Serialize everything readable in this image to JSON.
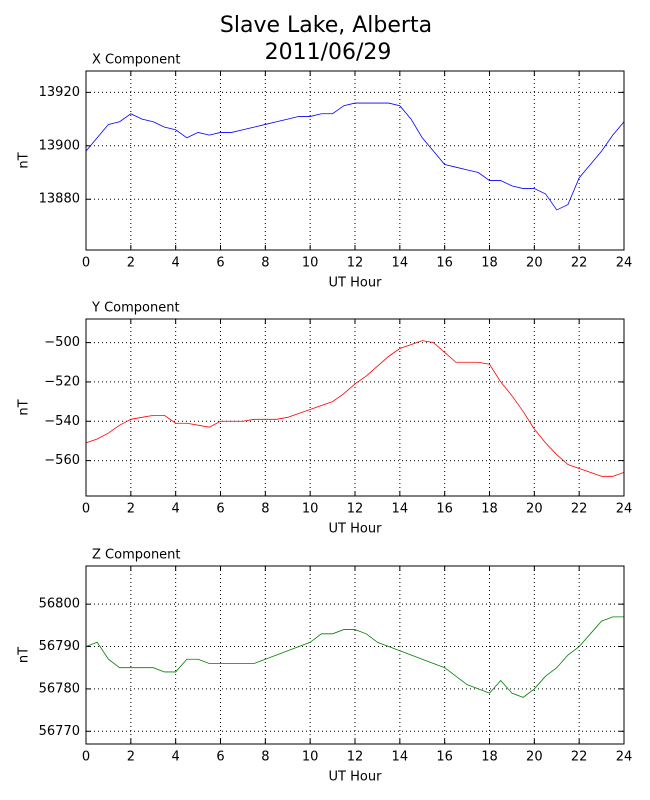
{
  "title": "Slave Lake, Alberta",
  "date": "2011/06/29",
  "chart_data": [
    {
      "type": "line",
      "title": "X Component",
      "xlabel": "UT Hour",
      "ylabel": "nT",
      "color": "#0000ff",
      "grid": true,
      "x": [
        0,
        0.5,
        1,
        1.5,
        2,
        2.5,
        3,
        3.5,
        4,
        4.5,
        5,
        5.5,
        6,
        6.5,
        7,
        7.5,
        8,
        8.5,
        9,
        9.5,
        10,
        10.5,
        11,
        11.5,
        12,
        12.5,
        13,
        13.5,
        14,
        14.5,
        15,
        15.5,
        16,
        16.5,
        17,
        17.5,
        18,
        18.5,
        19,
        19.5,
        20,
        20.5,
        21,
        21.5,
        22,
        22.5,
        23,
        23.5,
        24
      ],
      "values": [
        13898,
        13903,
        13908,
        13909,
        13912,
        13910,
        13909,
        13907,
        13906,
        13903,
        13905,
        13904,
        13905,
        13905,
        13906,
        13907,
        13908,
        13909,
        13910,
        13911,
        13911,
        13912,
        13912,
        13915,
        13916,
        13916,
        13916,
        13916,
        13915,
        13910,
        13903,
        13898,
        13893,
        13892,
        13891,
        13890,
        13887,
        13887,
        13885,
        13884,
        13884,
        13882,
        13876,
        13878,
        13888,
        13893,
        13898,
        13904,
        13909
      ],
      "xlim": [
        0,
        24
      ],
      "xticks": [
        0,
        2,
        4,
        6,
        8,
        10,
        12,
        14,
        16,
        18,
        20,
        22,
        24
      ],
      "ylim": [
        13861,
        13928
      ],
      "yticks": [
        13880,
        13900,
        13920
      ]
    },
    {
      "type": "line",
      "title": "Y Component",
      "xlabel": "UT Hour",
      "ylabel": "nT",
      "color": "#ff0000",
      "grid": true,
      "x": [
        0,
        0.5,
        1,
        1.5,
        2,
        2.5,
        3,
        3.5,
        4,
        4.5,
        5,
        5.5,
        6,
        6.5,
        7,
        7.5,
        8,
        8.5,
        9,
        9.5,
        10,
        10.5,
        11,
        11.5,
        12,
        12.5,
        13,
        13.5,
        14,
        14.5,
        15,
        15.5,
        16,
        16.5,
        17,
        17.5,
        18,
        18.5,
        19,
        19.5,
        20,
        20.5,
        21,
        21.5,
        22,
        22.5,
        23,
        23.5,
        24
      ],
      "values": [
        -551,
        -549,
        -546,
        -542,
        -539,
        -538,
        -537,
        -537,
        -541,
        -541,
        -542,
        -543,
        -540,
        -540,
        -540,
        -539,
        -539,
        -539,
        -538,
        -536,
        -534,
        -532,
        -530,
        -526,
        -521,
        -517,
        -512,
        -507,
        -503,
        -501,
        -499,
        -500,
        -505,
        -510,
        -510,
        -510,
        -511,
        -520,
        -527,
        -535,
        -544,
        -551,
        -557,
        -562,
        -564,
        -566,
        -568,
        -568,
        -566
      ],
      "xlim": [
        0,
        24
      ],
      "xticks": [
        0,
        2,
        4,
        6,
        8,
        10,
        12,
        14,
        16,
        18,
        20,
        22,
        24
      ],
      "ylim": [
        -578,
        -488
      ],
      "yticks": [
        {
          "value": -560,
          "label": "−560"
        },
        {
          "value": -540,
          "label": "−540"
        },
        {
          "value": -520,
          "label": "−520"
        },
        {
          "value": -500,
          "label": "−500"
        }
      ]
    },
    {
      "type": "line",
      "title": "Z Component",
      "xlabel": "UT Hour",
      "ylabel": "nT",
      "color": "#008000",
      "grid": true,
      "x": [
        0,
        0.5,
        1,
        1.5,
        2,
        2.5,
        3,
        3.5,
        4,
        4.5,
        5,
        5.5,
        6,
        6.5,
        7,
        7.5,
        8,
        8.5,
        9,
        9.5,
        10,
        10.5,
        11,
        11.5,
        12,
        12.5,
        13,
        13.5,
        14,
        14.5,
        15,
        15.5,
        16,
        16.5,
        17,
        17.5,
        18,
        18.5,
        19,
        19.5,
        20,
        20.5,
        21,
        21.5,
        22,
        22.5,
        23,
        23.5,
        24
      ],
      "values": [
        56790,
        56791,
        56787,
        56785,
        56785,
        56785,
        56785,
        56784,
        56784,
        56787,
        56787,
        56786,
        56786,
        56786,
        56786,
        56786,
        56787,
        56788,
        56789,
        56790,
        56791,
        56793,
        56793,
        56794,
        56794,
        56793,
        56791,
        56790,
        56789,
        56788,
        56787,
        56786,
        56785,
        56783,
        56781,
        56780,
        56779,
        56782,
        56779,
        56778,
        56780,
        56783,
        56785,
        56788,
        56790,
        56793,
        56796,
        56797,
        56797
      ],
      "xlim": [
        0,
        24
      ],
      "xticks": [
        0,
        2,
        4,
        6,
        8,
        10,
        12,
        14,
        16,
        18,
        20,
        22,
        24
      ],
      "ylim": [
        56767,
        56809
      ],
      "yticks": [
        56770,
        56780,
        56790,
        56800
      ]
    }
  ]
}
